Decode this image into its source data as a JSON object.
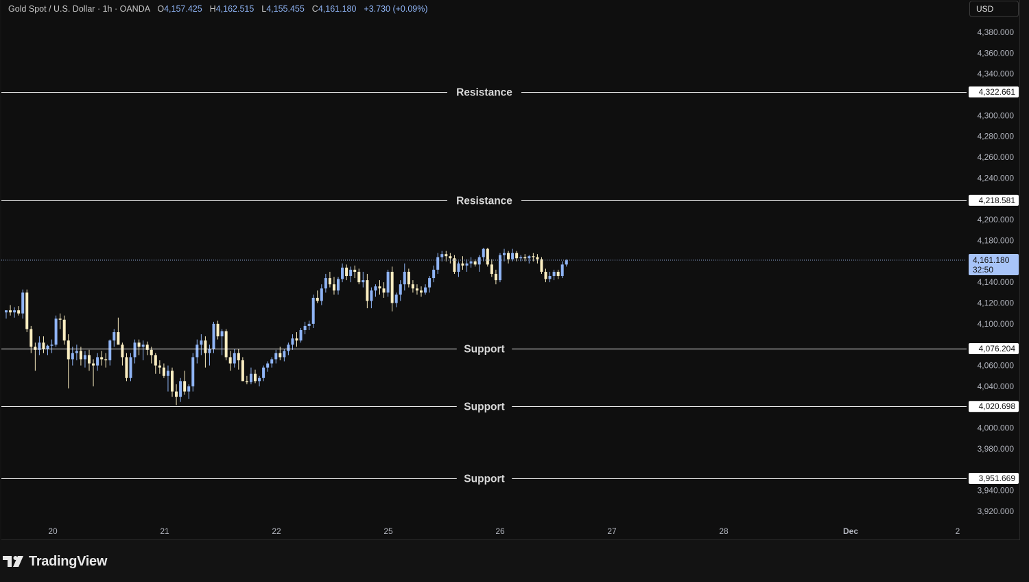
{
  "legend": {
    "symbol": "Gold Spot / U.S. Dollar",
    "interval": "1h",
    "source": "OANDA",
    "open_label": "O",
    "open": "4,157.425",
    "high_label": "H",
    "high": "4,162.515",
    "low_label": "L",
    "low": "4,155.455",
    "close_label": "C",
    "close": "4,161.180",
    "change": "+3.730 (+0.09%)"
  },
  "currency_button": "USD",
  "brand": "TradingView",
  "colors": {
    "background": "#0f0f0f",
    "up_candle": "#8fb4f5",
    "down_candle": "#fbeec1",
    "level_line": "#ffffff",
    "current_price_bg": "#a8c4f8"
  },
  "chart_data": {
    "type": "candlestick",
    "symbol": "Gold Spot / U.S. Dollar",
    "ylim": [
      3905,
      4410
    ],
    "y_ticks": [
      "4,380.000",
      "4,360.000",
      "4,340.000",
      "4,300.000",
      "4,280.000",
      "4,260.000",
      "4,240.000",
      "4,200.000",
      "4,180.000",
      "4,140.000",
      "4,120.000",
      "4,100.000",
      "4,060.000",
      "4,040.000",
      "4,000.000",
      "3,980.000",
      "3,940.000",
      "3,920.000"
    ],
    "x_ticks": [
      "20",
      "21",
      "22",
      "25",
      "26",
      "27",
      "28",
      "Dec",
      "2"
    ],
    "levels": [
      {
        "label": "Resistance",
        "price": "4,322.661"
      },
      {
        "label": "Resistance",
        "price": "4,218.581"
      },
      {
        "label": "Support",
        "price": "4,076.204"
      },
      {
        "label": "Support",
        "price": "4,020.698"
      },
      {
        "label": "Support",
        "price": "3,951.669"
      }
    ],
    "current_price": {
      "price": "4,161.180",
      "countdown": "32:50"
    },
    "candles": [
      [
        4111,
        4113,
        4105,
        4113
      ],
      [
        4113,
        4118,
        4108,
        4111
      ],
      [
        4111,
        4116,
        4106,
        4113
      ],
      [
        4113,
        4117,
        4108,
        4110
      ],
      [
        4110,
        4133,
        4105,
        4130
      ],
      [
        4130,
        4133,
        4092,
        4095
      ],
      [
        4095,
        4098,
        4072,
        4078
      ],
      [
        4078,
        4082,
        4055,
        4075
      ],
      [
        4075,
        4088,
        4070,
        4082
      ],
      [
        4082,
        4088,
        4072,
        4076
      ],
      [
        4076,
        4080,
        4070,
        4079
      ],
      [
        4079,
        4085,
        4072,
        4080
      ],
      [
        4080,
        4108,
        4078,
        4105
      ],
      [
        4105,
        4110,
        4095,
        4104
      ],
      [
        4104,
        4108,
        4080,
        4084
      ],
      [
        4084,
        4090,
        4038,
        4066
      ],
      [
        4066,
        4078,
        4060,
        4072
      ],
      [
        4072,
        4080,
        4065,
        4074
      ],
      [
        4074,
        4078,
        4060,
        4066
      ],
      [
        4066,
        4074,
        4058,
        4070
      ],
      [
        4070,
        4075,
        4055,
        4062
      ],
      [
        4062,
        4066,
        4040,
        4060
      ],
      [
        4060,
        4072,
        4055,
        4068
      ],
      [
        4068,
        4074,
        4060,
        4066
      ],
      [
        4066,
        4072,
        4058,
        4065
      ],
      [
        4065,
        4085,
        4060,
        4084
      ],
      [
        4084,
        4095,
        4078,
        4092
      ],
      [
        4092,
        4106,
        4085,
        4080
      ],
      [
        4080,
        4082,
        4060,
        4068
      ],
      [
        4068,
        4072,
        4045,
        4048
      ],
      [
        4048,
        4072,
        4045,
        4068
      ],
      [
        4068,
        4085,
        4062,
        4082
      ],
      [
        4082,
        4085,
        4070,
        4078
      ],
      [
        4078,
        4084,
        4065,
        4080
      ],
      [
        4080,
        4083,
        4070,
        4075
      ],
      [
        4075,
        4078,
        4062,
        4070
      ],
      [
        4070,
        4072,
        4052,
        4060
      ],
      [
        4060,
        4065,
        4052,
        4058
      ],
      [
        4058,
        4062,
        4048,
        4050
      ],
      [
        4050,
        4060,
        4035,
        4055
      ],
      [
        4055,
        4058,
        4030,
        4035
      ],
      [
        4035,
        4042,
        4022,
        4030
      ],
      [
        4030,
        4048,
        4025,
        4045
      ],
      [
        4045,
        4055,
        4032,
        4035
      ],
      [
        4035,
        4042,
        4028,
        4040
      ],
      [
        4040,
        4072,
        4035,
        4068
      ],
      [
        4068,
        4085,
        4062,
        4080
      ],
      [
        4080,
        4090,
        4070,
        4084
      ],
      [
        4084,
        4088,
        4058,
        4072
      ],
      [
        4072,
        4080,
        4060,
        4076
      ],
      [
        4076,
        4102,
        4072,
        4100
      ],
      [
        4100,
        4103,
        4085,
        4088
      ],
      [
        4088,
        4095,
        4070,
        4093
      ],
      [
        4093,
        4095,
        4065,
        4068
      ],
      [
        4068,
        4074,
        4055,
        4062
      ],
      [
        4062,
        4076,
        4058,
        4072
      ],
      [
        4072,
        4076,
        4056,
        4065
      ],
      [
        4065,
        4068,
        4045,
        4045
      ],
      [
        4045,
        4050,
        4042,
        4044
      ],
      [
        4044,
        4058,
        4042,
        4052
      ],
      [
        4052,
        4056,
        4043,
        4045
      ],
      [
        4045,
        4050,
        4040,
        4048
      ],
      [
        4048,
        4060,
        4045,
        4058
      ],
      [
        4058,
        4064,
        4054,
        4062
      ],
      [
        4062,
        4068,
        4058,
        4066
      ],
      [
        4066,
        4075,
        4062,
        4072
      ],
      [
        4072,
        4078,
        4065,
        4068
      ],
      [
        4068,
        4076,
        4064,
        4074
      ],
      [
        4074,
        4082,
        4070,
        4080
      ],
      [
        4080,
        4090,
        4075,
        4086
      ],
      [
        4086,
        4092,
        4078,
        4084
      ],
      [
        4084,
        4096,
        4082,
        4094
      ],
      [
        4094,
        4102,
        4090,
        4098
      ],
      [
        4098,
        4103,
        4094,
        4100
      ],
      [
        4100,
        4128,
        4096,
        4125
      ],
      [
        4125,
        4132,
        4120,
        4122
      ],
      [
        4122,
        4138,
        4118,
        4134
      ],
      [
        4134,
        4148,
        4130,
        4144
      ],
      [
        4144,
        4150,
        4135,
        4138
      ],
      [
        4138,
        4145,
        4128,
        4132
      ],
      [
        4132,
        4145,
        4128,
        4143
      ],
      [
        4143,
        4158,
        4140,
        4154
      ],
      [
        4154,
        4157,
        4142,
        4146
      ],
      [
        4146,
        4155,
        4140,
        4152
      ],
      [
        4152,
        4156,
        4144,
        4150
      ],
      [
        4150,
        4153,
        4138,
        4140
      ],
      [
        4140,
        4150,
        4135,
        4142
      ],
      [
        4142,
        4148,
        4115,
        4122
      ],
      [
        4122,
        4135,
        4115,
        4132
      ],
      [
        4132,
        4138,
        4126,
        4136
      ],
      [
        4136,
        4142,
        4128,
        4134
      ],
      [
        4134,
        4140,
        4125,
        4130
      ],
      [
        4130,
        4152,
        4126,
        4150
      ],
      [
        4150,
        4155,
        4112,
        4120
      ],
      [
        4120,
        4130,
        4116,
        4128
      ],
      [
        4128,
        4142,
        4122,
        4138
      ],
      [
        4138,
        4158,
        4132,
        4150
      ],
      [
        4150,
        4153,
        4135,
        4138
      ],
      [
        4138,
        4142,
        4130,
        4134
      ],
      [
        4134,
        4138,
        4128,
        4132
      ],
      [
        4132,
        4136,
        4126,
        4130
      ],
      [
        4130,
        4138,
        4128,
        4135
      ],
      [
        4135,
        4146,
        4130,
        4144
      ],
      [
        4144,
        4156,
        4140,
        4152
      ],
      [
        4152,
        4168,
        4148,
        4164
      ],
      [
        4164,
        4170,
        4160,
        4167
      ],
      [
        4167,
        4170,
        4160,
        4165
      ],
      [
        4165,
        4168,
        4158,
        4163
      ],
      [
        4163,
        4166,
        4148,
        4150
      ],
      [
        4150,
        4160,
        4145,
        4158
      ],
      [
        4158,
        4165,
        4152,
        4156
      ],
      [
        4156,
        4162,
        4150,
        4158
      ],
      [
        4158,
        4164,
        4154,
        4160
      ],
      [
        4160,
        4162,
        4155,
        4157
      ],
      [
        4157,
        4166,
        4150,
        4164
      ],
      [
        4164,
        4173,
        4160,
        4172
      ],
      [
        4172,
        4173,
        4155,
        4157
      ],
      [
        4157,
        4162,
        4145,
        4148
      ],
      [
        4148,
        4152,
        4138,
        4142
      ],
      [
        4142,
        4168,
        4140,
        4166
      ],
      [
        4166,
        4172,
        4160,
        4168
      ],
      [
        4168,
        4170,
        4158,
        4162
      ],
      [
        4162,
        4172,
        4160,
        4168
      ],
      [
        4168,
        4170,
        4160,
        4163
      ],
      [
        4163,
        4166,
        4160,
        4164
      ],
      [
        4164,
        4167,
        4160,
        4163
      ],
      [
        4163,
        4166,
        4158,
        4165
      ],
      [
        4165,
        4168,
        4160,
        4164
      ],
      [
        4164,
        4167,
        4158,
        4162
      ],
      [
        4162,
        4164,
        4148,
        4150
      ],
      [
        4150,
        4153,
        4140,
        4143
      ],
      [
        4143,
        4150,
        4140,
        4146
      ],
      [
        4146,
        4152,
        4142,
        4150
      ],
      [
        4150,
        4152,
        4143,
        4146
      ],
      [
        4146,
        4160,
        4144,
        4157
      ],
      [
        4157,
        4162,
        4155,
        4161
      ]
    ]
  }
}
